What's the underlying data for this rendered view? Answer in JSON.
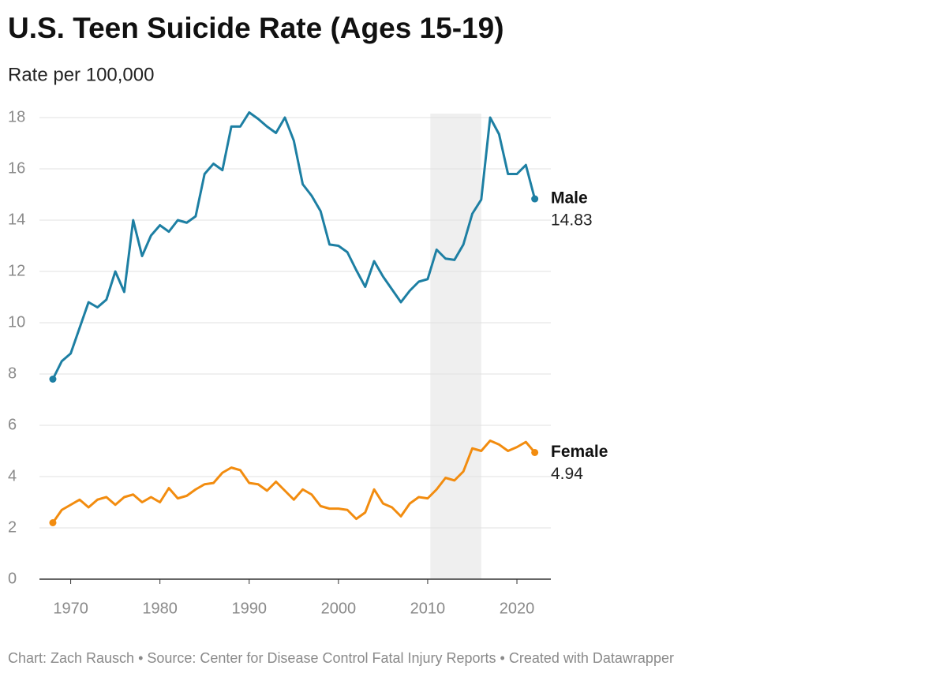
{
  "chart_data": {
    "type": "line",
    "title": "U.S. Teen Suicide Rate (Ages 15-19)",
    "subtitle": "Rate per 100,000",
    "footer": "Chart: Zach Rausch • Source: Center for Disease Control Fatal Injury Reports • Created with Datawrapper",
    "x": [
      1968,
      1969,
      1970,
      1971,
      1972,
      1973,
      1974,
      1975,
      1976,
      1977,
      1978,
      1979,
      1980,
      1981,
      1982,
      1983,
      1984,
      1985,
      1986,
      1987,
      1988,
      1989,
      1990,
      1991,
      1992,
      1993,
      1994,
      1995,
      1996,
      1997,
      1998,
      1999,
      2000,
      2001,
      2002,
      2003,
      2004,
      2005,
      2006,
      2007,
      2008,
      2009,
      2010,
      2011,
      2012,
      2013,
      2014,
      2015,
      2016,
      2017,
      2018,
      2019,
      2020,
      2021,
      2022
    ],
    "series": [
      {
        "name": "Male",
        "color": "#1d7fa3",
        "values": [
          7.8,
          8.5,
          8.8,
          9.8,
          10.8,
          10.6,
          10.9,
          12.0,
          11.2,
          14.0,
          12.6,
          13.4,
          13.8,
          13.55,
          14.0,
          13.9,
          14.15,
          15.8,
          16.2,
          15.95,
          17.65,
          17.65,
          18.2,
          17.95,
          17.65,
          17.4,
          18.0,
          17.1,
          15.4,
          14.95,
          14.35,
          13.05,
          13.0,
          12.75,
          12.05,
          11.4,
          12.4,
          11.8,
          11.3,
          10.8,
          11.25,
          11.6,
          11.7,
          12.85,
          12.5,
          12.45,
          13.05,
          14.25,
          14.8,
          18.0,
          17.35,
          15.8,
          15.8,
          16.15,
          14.83
        ]
      },
      {
        "name": "Female",
        "color": "#f28c0f",
        "values": [
          2.2,
          2.7,
          2.9,
          3.1,
          2.8,
          3.1,
          3.2,
          2.9,
          3.2,
          3.3,
          3.0,
          3.2,
          3.0,
          3.55,
          3.15,
          3.25,
          3.5,
          3.7,
          3.75,
          4.15,
          4.35,
          4.25,
          3.75,
          3.7,
          3.45,
          3.8,
          3.45,
          3.1,
          3.5,
          3.3,
          2.85,
          2.75,
          2.75,
          2.7,
          2.35,
          2.6,
          3.5,
          2.95,
          2.8,
          2.45,
          2.95,
          3.2,
          3.15,
          3.5,
          3.95,
          3.85,
          4.2,
          5.1,
          5.0,
          5.4,
          5.25,
          5.0,
          5.15,
          5.35,
          4.94
        ]
      }
    ],
    "highlight_range": [
      2010.3,
      2016
    ],
    "xlim": [
      1966.5,
      2023.8
    ],
    "xticks": [
      1970,
      1980,
      1990,
      2000,
      2010,
      2020
    ],
    "ylim": [
      0,
      18
    ],
    "yticks": [
      0,
      2,
      4,
      6,
      8,
      10,
      12,
      14,
      16,
      18
    ],
    "grid": true
  }
}
